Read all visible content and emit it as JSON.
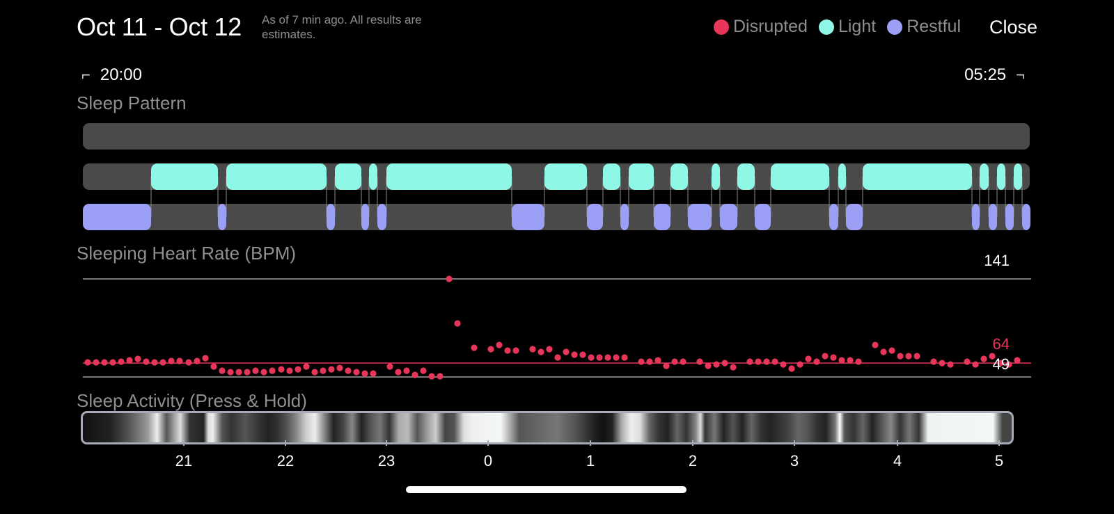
{
  "header": {
    "title": "Oct 11 - Oct 12",
    "subtitle": "As of 7 min ago. All results are estimates.",
    "close_label": "Close"
  },
  "legend": [
    {
      "label": "Disrupted",
      "color": "#e8365a"
    },
    {
      "label": "Light",
      "color": "#8ff7e6"
    },
    {
      "label": "Restful",
      "color": "#9b9ff5"
    }
  ],
  "range": {
    "start": "20:00",
    "end": "05:25"
  },
  "sections": {
    "sleep_pattern": "Sleep Pattern",
    "heart_rate": "Sleeping Heart Rate (BPM)",
    "activity": "Sleep Activity (Press & Hold)"
  },
  "heart_rate": {
    "max": "141",
    "avg": "64",
    "min": "49"
  },
  "time_axis": [
    "21",
    "22",
    "23",
    "0",
    "1",
    "2",
    "3",
    "4",
    "5"
  ],
  "colors": {
    "disrupted": "#e8365a",
    "light": "#8ff7e6",
    "restful": "#9b9ff5",
    "track": "#4a4a4a"
  }
}
